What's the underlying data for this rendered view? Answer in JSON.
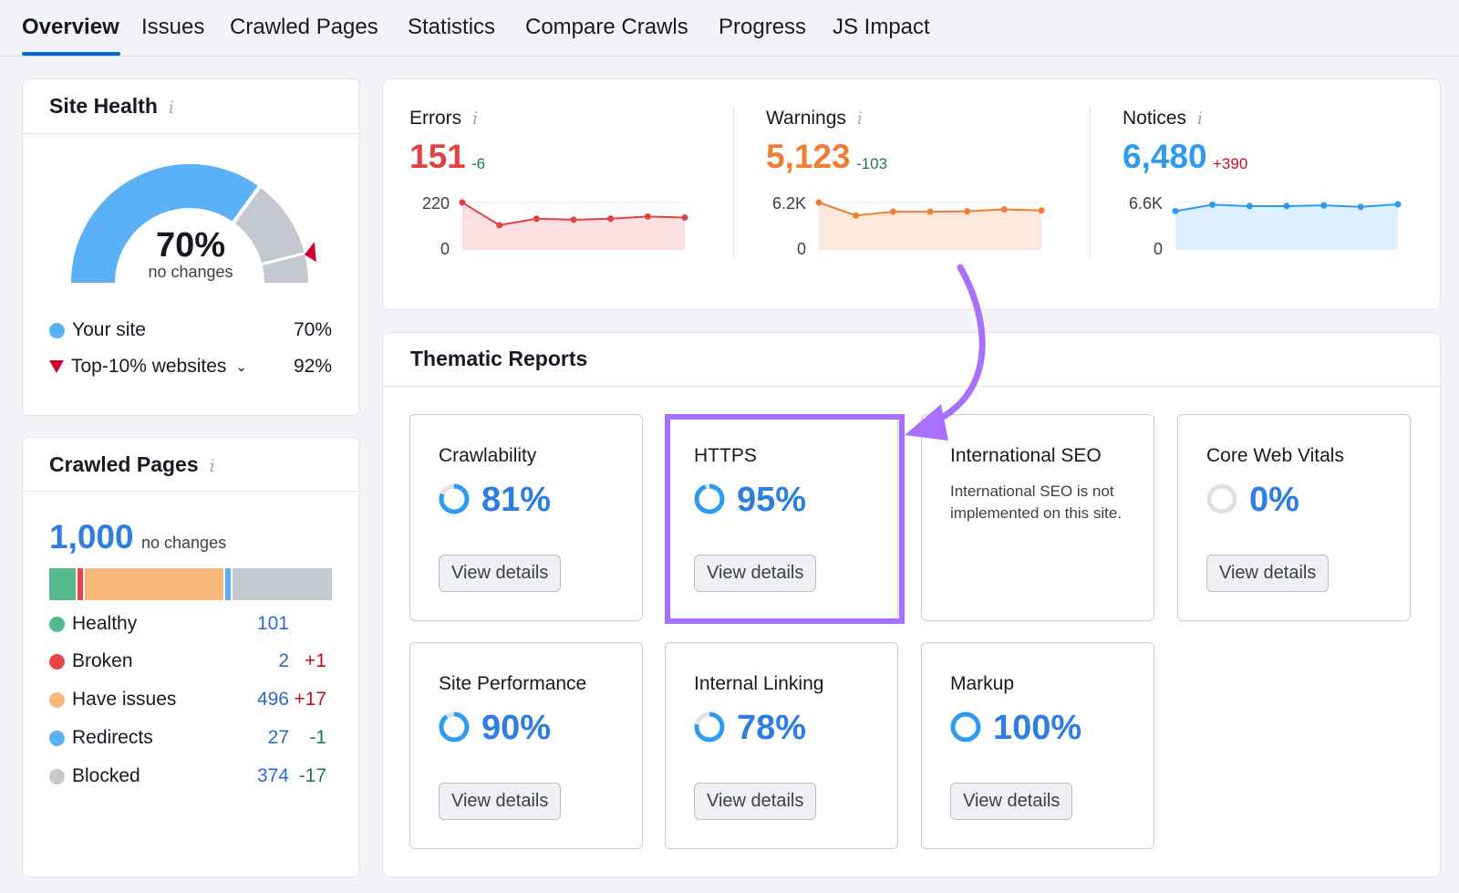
{
  "tabs": [
    {
      "label": "Overview",
      "active": true
    },
    {
      "label": "Issues"
    },
    {
      "label": "Crawled Pages"
    },
    {
      "label": "Statistics"
    },
    {
      "label": "Compare Crawls"
    },
    {
      "label": "Progress"
    },
    {
      "label": "JS Impact"
    }
  ],
  "site_health": {
    "title": "Site Health",
    "info_glyph": "i",
    "gauge_value": "70%",
    "gauge_fraction": 0.7,
    "top10_fraction": 0.92,
    "gauge_sub": "no changes",
    "legend": [
      {
        "label": "Your site",
        "value": "70%",
        "color": "#5bb1f8"
      },
      {
        "label": "Top-10% websites",
        "value": "92%",
        "color": "#d1002f"
      }
    ]
  },
  "crawled_pages": {
    "title": "Crawled Pages",
    "info_glyph": "i",
    "total": "1,000",
    "total_sub": "no changes",
    "rows": [
      {
        "label": "Healthy",
        "count": "101",
        "count_num": 101,
        "delta": "",
        "color": "#55bb8e"
      },
      {
        "label": "Broken",
        "count": "2",
        "count_num": 2,
        "delta": "+1",
        "color": "#e9464a"
      },
      {
        "label": "Have issues",
        "count": "496",
        "count_num": 496,
        "delta": "+17",
        "color": "#f7b778"
      },
      {
        "label": "Redirects",
        "count": "27",
        "count_num": 27,
        "delta": "-1",
        "color": "#5bb1f8"
      },
      {
        "label": "Blocked",
        "count": "374",
        "count_num": 374,
        "delta": "-17",
        "color": "#c5c8cf"
      }
    ]
  },
  "issues": [
    {
      "label": "Errors",
      "value": "151",
      "delta": "-6",
      "delta_type": "neg",
      "color": "#e3403f",
      "fill": "#fde1e2",
      "ymax": "220",
      "ymin": "0",
      "max": 220,
      "series": [
        220,
        115,
        145,
        140,
        145,
        155,
        150
      ]
    },
    {
      "label": "Warnings",
      "value": "5,123",
      "delta": "-103",
      "delta_type": "neg",
      "color": "#f27c33",
      "fill": "#fde9dc",
      "ymax": "6.2K",
      "ymin": "0",
      "max": 6200,
      "series": [
        6200,
        4500,
        5000,
        5000,
        5050,
        5300,
        5150
      ]
    },
    {
      "label": "Notices",
      "value": "6,480",
      "delta": "+390",
      "delta_type": "pos",
      "color": "#2d9cf0",
      "fill": "#dcefff",
      "ymax": "6.6K",
      "ymin": "0",
      "max": 6600,
      "series": [
        5400,
        6300,
        6100,
        6100,
        6200,
        6000,
        6350
      ]
    }
  ],
  "thematic": {
    "title": "Thematic Reports",
    "reports": [
      {
        "title": "Crawlability",
        "pct": "81%",
        "pct_num": 0.81,
        "button": "View details"
      },
      {
        "title": "HTTPS",
        "pct": "95%",
        "pct_num": 0.95,
        "button": "View details"
      },
      {
        "title": "International SEO",
        "text": "International SEO is not implemented on this site."
      },
      {
        "title": "Core Web Vitals",
        "pct": "0%",
        "pct_num": 0,
        "button": "View details"
      },
      {
        "title": "Site Performance",
        "pct": "90%",
        "pct_num": 0.9,
        "button": "View details"
      },
      {
        "title": "Internal Linking",
        "pct": "78%",
        "pct_num": 0.78,
        "button": "View details"
      },
      {
        "title": "Markup",
        "pct": "100%",
        "pct_num": 1.0,
        "button": "View details"
      }
    ]
  },
  "colors": {
    "accent": "#006dca",
    "highlight": "#a970ff",
    "pct_blue": "#2d7ee0"
  }
}
